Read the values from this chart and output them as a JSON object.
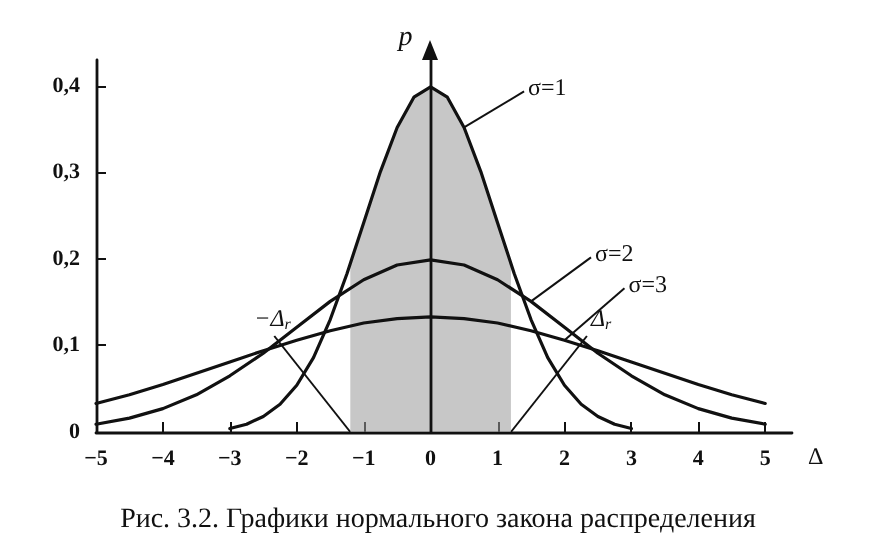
{
  "chart_data": {
    "type": "line",
    "title": "Рис. 3.2. Графики нормального закона распределения",
    "xlabel": "Δ",
    "ylabel": "p",
    "xlim": [
      -5,
      5.4
    ],
    "xticks": [
      -5,
      -4,
      -3,
      -2,
      -1,
      0,
      1,
      2,
      3,
      4,
      5
    ],
    "ylim": [
      0,
      0.43
    ],
    "yticks": [
      {
        "value": 0,
        "label": "0"
      },
      {
        "value": 0.1,
        "label": "0,1"
      },
      {
        "value": 0.2,
        "label": "0,2"
      },
      {
        "value": 0.3,
        "label": "0,3"
      },
      {
        "value": 0.4,
        "label": "0,4"
      }
    ],
    "grid": false,
    "marker": "none",
    "line_style": "solid",
    "series": [
      {
        "type": "area",
        "color": "#999999",
        "x": [
          -1.2,
          -1,
          -0.75,
          -0.5,
          -0.25,
          0,
          0.25,
          0.5,
          0.75,
          1,
          1.2
        ],
        "values": [
          0.194,
          0.242,
          0.301,
          0.352,
          0.387,
          0.399,
          0.387,
          0.352,
          0.301,
          0.242,
          0.194
        ]
      },
      {
        "name": "σ=1",
        "color": "#111111",
        "x": [
          -3,
          -2.75,
          -2.5,
          -2.25,
          -2,
          -1.75,
          -1.5,
          -1.25,
          -1,
          -0.75,
          -0.5,
          -0.25,
          0,
          0.25,
          0.5,
          0.75,
          1,
          1.25,
          1.5,
          1.75,
          2,
          2.25,
          2.5,
          2.75,
          3
        ],
        "values": [
          0.004,
          0.009,
          0.018,
          0.032,
          0.054,
          0.086,
          0.13,
          0.183,
          0.242,
          0.301,
          0.352,
          0.387,
          0.399,
          0.387,
          0.352,
          0.301,
          0.242,
          0.183,
          0.13,
          0.086,
          0.054,
          0.032,
          0.018,
          0.009,
          0.004
        ]
      },
      {
        "name": "σ=2",
        "color": "#111111",
        "x": [
          -5,
          -4.5,
          -4,
          -3.5,
          -3,
          -2.5,
          -2,
          -1.5,
          -1,
          -0.5,
          0,
          0.5,
          1,
          1.5,
          2,
          2.5,
          3,
          3.5,
          4,
          4.5,
          5
        ],
        "values": [
          0.009,
          0.016,
          0.027,
          0.043,
          0.065,
          0.091,
          0.121,
          0.151,
          0.176,
          0.193,
          0.199,
          0.193,
          0.176,
          0.151,
          0.121,
          0.091,
          0.065,
          0.043,
          0.027,
          0.016,
          0.009
        ]
      },
      {
        "name": "σ=3",
        "color": "#111111",
        "x": [
          -5,
          -4.5,
          -4,
          -3.5,
          -3,
          -2.5,
          -2,
          -1.5,
          -1,
          -0.5,
          0,
          0.5,
          1,
          1.5,
          2,
          2.5,
          3,
          3.5,
          4,
          4.5,
          5
        ],
        "values": [
          0.033,
          0.043,
          0.055,
          0.068,
          0.081,
          0.094,
          0.106,
          0.117,
          0.126,
          0.131,
          0.133,
          0.131,
          0.126,
          0.117,
          0.106,
          0.094,
          0.081,
          0.068,
          0.055,
          0.043,
          0.033
        ]
      }
    ],
    "ref_lines": [
      {
        "axis": "x",
        "value": 0,
        "color": "#111111"
      }
    ],
    "annotations": [
      {
        "text": "−Δ$_{r}$",
        "x": -1.2,
        "y": 0
      },
      {
        "text": "Δ$_{r}$",
        "x": 1.2,
        "y": 0
      }
    ]
  }
}
